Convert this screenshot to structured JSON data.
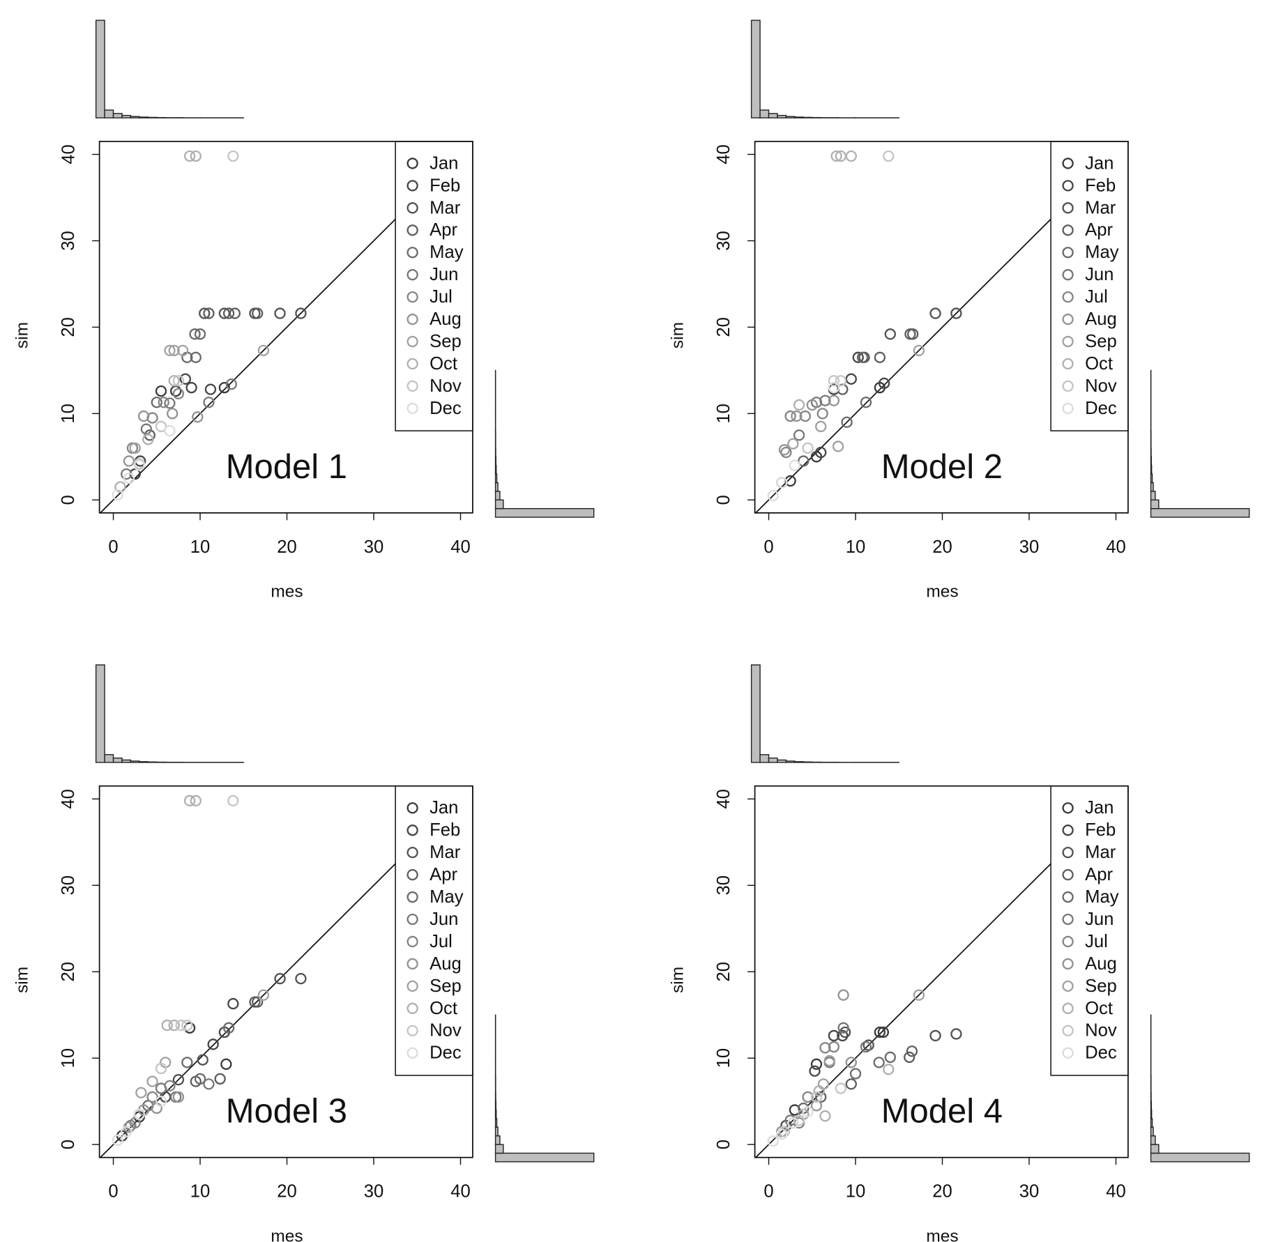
{
  "chart_data": [
    {
      "type": "scatter",
      "annotation": "Model 1",
      "x_label": "mes",
      "y_label": "sim",
      "legend": "topright",
      "xlim": [
        -1.6,
        41.4
      ],
      "ylim": [
        -1.5,
        41.5
      ],
      "xticks": [
        0,
        10,
        20,
        30,
        40
      ],
      "yticks": [
        0,
        10,
        20,
        30,
        40
      ],
      "series": [
        {
          "name": "Jan",
          "color": "#3a3a3a",
          "x": [
            5.5,
            7.2,
            12.8,
            2.5
          ],
          "values": [
            12.6,
            12.6,
            13,
            3
          ]
        },
        {
          "name": "Feb",
          "color": "#464646",
          "x": [
            8.3,
            9,
            11.2,
            3.1
          ],
          "values": [
            14,
            13,
            12.8,
            4.5
          ]
        },
        {
          "name": "Mar",
          "color": "#525252",
          "x": [
            10.5,
            12.8,
            16.3,
            19.2,
            21.6
          ],
          "values": [
            21.6,
            21.6,
            21.6,
            21.6,
            21.6
          ]
        },
        {
          "name": "Apr",
          "color": "#5e5e5e",
          "x": [
            11,
            13.3,
            14,
            16.6,
            4.2
          ],
          "values": [
            21.6,
            21.6,
            21.6,
            21.6,
            7.5
          ]
        },
        {
          "name": "May",
          "color": "#6a6a6a",
          "x": [
            9.4,
            10,
            8.5,
            9.5,
            5
          ],
          "values": [
            19.2,
            19.2,
            16.5,
            16.5,
            11.3
          ]
        },
        {
          "name": "Jun",
          "color": "#777777",
          "x": [
            6.5,
            13.6,
            11,
            1.5,
            3.8
          ],
          "values": [
            11.2,
            13.4,
            11.3,
            3,
            8.2
          ]
        },
        {
          "name": "Jul",
          "color": "#858585",
          "x": [
            5.8,
            7.5,
            4.5,
            2.2
          ],
          "values": [
            11.3,
            12.3,
            9.5,
            6
          ]
        },
        {
          "name": "Aug",
          "color": "#939393",
          "x": [
            3.5,
            6.8,
            9.7,
            1.8
          ],
          "values": [
            9.7,
            10,
            9.6,
            4.5
          ]
        },
        {
          "name": "Sep",
          "color": "#a1a1a1",
          "x": [
            6.5,
            7,
            17.3,
            2.5,
            8
          ],
          "values": [
            17.3,
            17.3,
            17.3,
            6,
            17.3
          ]
        },
        {
          "name": "Oct",
          "color": "#b0b0b0",
          "x": [
            8.8,
            9.5,
            7,
            4,
            0.8
          ],
          "values": [
            39.8,
            39.8,
            13.8,
            7,
            1.5
          ]
        },
        {
          "name": "Nov",
          "color": "#c4c4c4",
          "x": [
            13.8,
            7.5,
            5.5,
            3
          ],
          "values": [
            39.8,
            13.8,
            8.5,
            4.2
          ]
        },
        {
          "name": "Dec",
          "color": "#dcdcdc",
          "x": [
            0.5,
            1.8,
            3,
            6.5
          ],
          "values": [
            0.6,
            2.5,
            4,
            8
          ]
        }
      ],
      "hist_x": {
        "bins": [
          -2,
          -1,
          0,
          1,
          2,
          3,
          4,
          5,
          6,
          8,
          10,
          15,
          20,
          30,
          40
        ],
        "counts": [
          1000,
          80,
          45,
          25,
          14,
          8,
          5,
          3,
          2,
          1,
          1,
          0,
          0,
          0
        ]
      },
      "hist_y": {
        "bins": [
          -2,
          -1,
          0,
          1,
          2,
          3,
          4,
          5,
          6,
          8,
          10,
          15,
          20,
          30,
          40
        ],
        "counts": [
          1000,
          80,
          45,
          25,
          14,
          8,
          5,
          3,
          2,
          1,
          1,
          0,
          0,
          0
        ]
      }
    },
    {
      "type": "scatter",
      "annotation": "Model 2",
      "x_label": "mes",
      "y_label": "sim",
      "legend": "topright",
      "xlim": [
        -1.6,
        41.4
      ],
      "ylim": [
        -1.5,
        41.5
      ],
      "xticks": [
        0,
        10,
        20,
        30,
        40
      ],
      "yticks": [
        0,
        10,
        20,
        30,
        40
      ],
      "series": [
        {
          "name": "Jan",
          "color": "#3a3a3a",
          "x": [
            7.5,
            12.8,
            5.5,
            2.5
          ],
          "values": [
            12.8,
            13,
            5,
            2.2
          ]
        },
        {
          "name": "Feb",
          "color": "#464646",
          "x": [
            9.5,
            10.3,
            13.3,
            6
          ],
          "values": [
            14,
            16.5,
            13.5,
            5.5
          ]
        },
        {
          "name": "Mar",
          "color": "#525252",
          "x": [
            19.2,
            21.6,
            14,
            11
          ],
          "values": [
            21.6,
            21.6,
            19.2,
            16.5
          ]
        },
        {
          "name": "Apr",
          "color": "#5e5e5e",
          "x": [
            16.3,
            16.6,
            12.8,
            8.5
          ],
          "values": [
            19.2,
            19.2,
            16.5,
            12.8
          ]
        },
        {
          "name": "May",
          "color": "#6a6a6a",
          "x": [
            10.8,
            11.2,
            9,
            4
          ],
          "values": [
            16.5,
            11.3,
            9,
            4.5
          ]
        },
        {
          "name": "Jun",
          "color": "#777777",
          "x": [
            5.5,
            6.5,
            3.5,
            1.5
          ],
          "values": [
            11.3,
            11.5,
            7.5,
            2
          ]
        },
        {
          "name": "Jul",
          "color": "#858585",
          "x": [
            2.5,
            4.2,
            6.2,
            2
          ],
          "values": [
            9.7,
            9.7,
            10,
            5.5
          ]
        },
        {
          "name": "Aug",
          "color": "#939393",
          "x": [
            3.2,
            5,
            1.8,
            7.5
          ],
          "values": [
            9.7,
            11,
            5.8,
            11.5
          ]
        },
        {
          "name": "Sep",
          "color": "#a1a1a1",
          "x": [
            17.3,
            8,
            2.8,
            6
          ],
          "values": [
            17.3,
            6.2,
            6.5,
            8.5
          ]
        },
        {
          "name": "Oct",
          "color": "#b0b0b0",
          "x": [
            7.8,
            8.3,
            9.5,
            3.5
          ],
          "values": [
            39.8,
            39.8,
            39.8,
            11
          ]
        },
        {
          "name": "Nov",
          "color": "#c4c4c4",
          "x": [
            13.8,
            7.5,
            8.3,
            4.5
          ],
          "values": [
            39.8,
            13.8,
            13.8,
            6
          ]
        },
        {
          "name": "Dec",
          "color": "#dcdcdc",
          "x": [
            0.5,
            1.5,
            3,
            7.5
          ],
          "values": [
            0.5,
            2,
            4,
            13
          ]
        }
      ],
      "hist_x": {
        "bins": [
          -2,
          -1,
          0,
          1,
          2,
          3,
          4,
          5,
          6,
          8,
          10,
          15,
          20,
          30,
          40
        ],
        "counts": [
          1000,
          80,
          45,
          25,
          14,
          8,
          5,
          3,
          2,
          1,
          1,
          0,
          0,
          0
        ]
      },
      "hist_y": {
        "bins": [
          -2,
          -1,
          0,
          1,
          2,
          3,
          4,
          5,
          6,
          8,
          10,
          15,
          20,
          30,
          40
        ],
        "counts": [
          1000,
          80,
          45,
          25,
          14,
          8,
          5,
          3,
          2,
          1,
          1,
          0,
          0,
          0
        ]
      }
    },
    {
      "type": "scatter",
      "annotation": "Model 3",
      "x_label": "mes",
      "y_label": "sim",
      "legend": "topright",
      "xlim": [
        -1.6,
        41.4
      ],
      "ylim": [
        -1.5,
        41.5
      ],
      "xticks": [
        0,
        10,
        20,
        30,
        40
      ],
      "yticks": [
        0,
        10,
        20,
        30,
        40
      ],
      "series": [
        {
          "name": "Jan",
          "color": "#3a3a3a",
          "x": [
            13,
            8.8,
            3,
            1
          ],
          "values": [
            9.3,
            13.5,
            3.2,
            1
          ]
        },
        {
          "name": "Feb",
          "color": "#464646",
          "x": [
            13.8,
            12.8,
            11.5,
            6
          ],
          "values": [
            16.3,
            13,
            11.6,
            5.5
          ]
        },
        {
          "name": "Mar",
          "color": "#525252",
          "x": [
            19.2,
            21.6,
            10.3,
            7.5
          ],
          "values": [
            19.2,
            19.2,
            9.8,
            7.5
          ]
        },
        {
          "name": "Apr",
          "color": "#5e5e5e",
          "x": [
            16.3,
            16.6,
            12.3,
            9.5
          ],
          "values": [
            16.5,
            16.5,
            7.6,
            7.3
          ]
        },
        {
          "name": "May",
          "color": "#6a6a6a",
          "x": [
            13.3,
            10,
            8.5,
            4
          ],
          "values": [
            13.5,
            7.6,
            9.5,
            4.5
          ]
        },
        {
          "name": "Jun",
          "color": "#777777",
          "x": [
            7.2,
            5.5,
            2,
            11
          ],
          "values": [
            5.5,
            6.5,
            2.2,
            7
          ]
        },
        {
          "name": "Jul",
          "color": "#858585",
          "x": [
            4.5,
            6.5,
            3,
            2.5
          ],
          "values": [
            5.5,
            6.8,
            3.5,
            2.5
          ]
        },
        {
          "name": "Aug",
          "color": "#939393",
          "x": [
            7.5,
            5,
            1.8,
            3.5
          ],
          "values": [
            5.5,
            4.2,
            2,
            4
          ]
        },
        {
          "name": "Sep",
          "color": "#a1a1a1",
          "x": [
            17.3,
            4.5,
            3.2,
            6
          ],
          "values": [
            17.3,
            7.3,
            6,
            9.5
          ]
        },
        {
          "name": "Oct",
          "color": "#b0b0b0",
          "x": [
            8.8,
            9.5,
            6.2,
            7
          ],
          "values": [
            39.8,
            39.8,
            13.8,
            13.8
          ]
        },
        {
          "name": "Nov",
          "color": "#c4c4c4",
          "x": [
            13.8,
            7.8,
            8.5,
            5.5
          ],
          "values": [
            39.8,
            13.8,
            13.8,
            8.8
          ]
        },
        {
          "name": "Dec",
          "color": "#dcdcdc",
          "x": [
            0.5,
            1.5,
            3,
            5.5
          ],
          "values": [
            0.5,
            1.5,
            3.5,
            5
          ]
        }
      ],
      "hist_x": {
        "bins": [
          -2,
          -1,
          0,
          1,
          2,
          3,
          4,
          5,
          6,
          8,
          10,
          15,
          20,
          30,
          40
        ],
        "counts": [
          1000,
          80,
          45,
          25,
          14,
          8,
          5,
          3,
          2,
          1,
          1,
          0,
          0,
          0
        ]
      },
      "hist_y": {
        "bins": [
          -2,
          -1,
          0,
          1,
          2,
          3,
          4,
          5,
          6,
          8,
          10,
          15,
          20,
          30,
          40
        ],
        "counts": [
          1000,
          80,
          45,
          25,
          14,
          8,
          5,
          3,
          2,
          1,
          1,
          0,
          0,
          0
        ]
      }
    },
    {
      "type": "scatter",
      "annotation": "Model 4",
      "x_label": "mes",
      "y_label": "sim",
      "legend": "topright",
      "xlim": [
        -1.6,
        41.4
      ],
      "ylim": [
        -1.5,
        41.5
      ],
      "xticks": [
        0,
        10,
        20,
        30,
        40
      ],
      "yticks": [
        0,
        10,
        20,
        30,
        40
      ],
      "series": [
        {
          "name": "Jan",
          "color": "#3a3a3a",
          "x": [
            12.8,
            13.2,
            5.5,
            3
          ],
          "values": [
            13,
            13,
            9.3,
            4
          ]
        },
        {
          "name": "Feb",
          "color": "#464646",
          "x": [
            8.5,
            7.5,
            5.3,
            2
          ],
          "values": [
            12.6,
            12.6,
            8.5,
            2.2
          ]
        },
        {
          "name": "Mar",
          "color": "#525252",
          "x": [
            19.2,
            21.6,
            8.8,
            11.5
          ],
          "values": [
            12.6,
            12.8,
            13,
            11.5
          ]
        },
        {
          "name": "Apr",
          "color": "#5e5e5e",
          "x": [
            16.5,
            16.2,
            9.5,
            6
          ],
          "values": [
            10.8,
            10.1,
            7,
            5.5
          ]
        },
        {
          "name": "May",
          "color": "#6a6a6a",
          "x": [
            14,
            12.7,
            10,
            4
          ],
          "values": [
            10.1,
            9.5,
            8.2,
            4.2
          ]
        },
        {
          "name": "Jun",
          "color": "#777777",
          "x": [
            8.6,
            11.2,
            7,
            2.5
          ],
          "values": [
            13.5,
            11.3,
            9.5,
            2.8
          ]
        },
        {
          "name": "Jul",
          "color": "#858585",
          "x": [
            6.5,
            7.5,
            4.5,
            3.5
          ],
          "values": [
            11.2,
            11.3,
            5.5,
            2.5
          ]
        },
        {
          "name": "Aug",
          "color": "#939393",
          "x": [
            8.6,
            9.5,
            5.5,
            1.5
          ],
          "values": [
            17.3,
            9.5,
            4.5,
            1.5
          ]
        },
        {
          "name": "Sep",
          "color": "#a1a1a1",
          "x": [
            17.3,
            6.3,
            4,
            7
          ],
          "values": [
            17.3,
            7,
            3.5,
            9.7
          ]
        },
        {
          "name": "Oct",
          "color": "#b0b0b0",
          "x": [
            13.8,
            6.5,
            5.8,
            2.8
          ],
          "values": [
            8.7,
            3.3,
            6.2,
            2.5
          ]
        },
        {
          "name": "Nov",
          "color": "#c4c4c4",
          "x": [
            8.3,
            5.5,
            3.5,
            1.8
          ],
          "values": [
            6.5,
            5.5,
            2.8,
            1.5
          ]
        },
        {
          "name": "Dec",
          "color": "#dcdcdc",
          "x": [
            0.5,
            1.5,
            2.8,
            4.5
          ],
          "values": [
            0.4,
            1.2,
            2.5,
            3.8
          ]
        }
      ],
      "hist_x": {
        "bins": [
          -2,
          -1,
          0,
          1,
          2,
          3,
          4,
          5,
          6,
          8,
          10,
          15,
          20,
          30,
          40
        ],
        "counts": [
          1000,
          80,
          45,
          25,
          14,
          8,
          5,
          3,
          2,
          1,
          1,
          0,
          0,
          0
        ]
      },
      "hist_y": {
        "bins": [
          -2,
          -1,
          0,
          1,
          2,
          3,
          4,
          5,
          6,
          8,
          10,
          15,
          20,
          30,
          40
        ],
        "counts": [
          1000,
          80,
          45,
          25,
          14,
          8,
          5,
          3,
          2,
          1,
          1,
          0,
          0,
          0
        ]
      }
    }
  ]
}
